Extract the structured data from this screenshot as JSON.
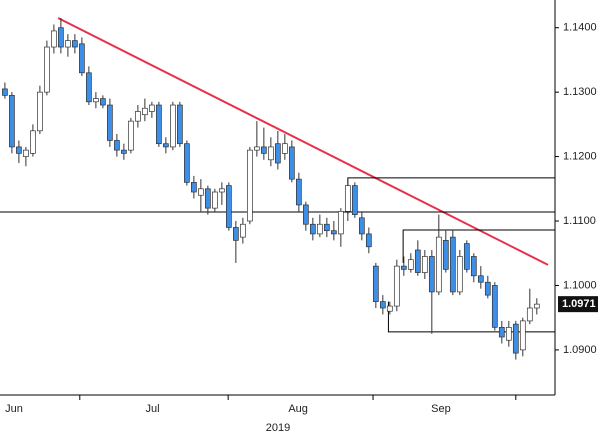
{
  "chart_data": {
    "type": "candlestick",
    "xlabel": "2019",
    "categories": [
      null,
      null,
      null,
      null,
      null,
      null,
      null,
      null,
      null,
      null,
      null,
      null,
      null,
      null,
      null,
      null,
      null,
      null,
      null,
      null,
      null,
      null,
      null,
      null,
      null,
      null,
      null,
      null,
      null,
      null,
      null,
      null,
      null,
      null,
      null,
      null,
      null,
      null,
      null,
      null,
      null,
      null,
      null,
      null,
      null,
      null,
      null,
      null,
      null,
      null,
      null,
      null,
      null,
      null,
      null,
      null,
      null,
      null,
      null,
      null,
      null,
      null,
      null,
      null,
      null,
      null,
      null,
      null,
      null,
      null,
      null,
      null,
      null,
      null,
      null,
      null,
      null
    ],
    "open": [
      1.1305,
      1.1295,
      1.1215,
      1.12,
      1.1205,
      1.124,
      1.13,
      1.137,
      1.14,
      1.137,
      1.138,
      1.1375,
      1.133,
      1.1285,
      1.129,
      1.128,
      1.1225,
      1.121,
      1.121,
      1.1255,
      1.1265,
      1.127,
      1.128,
      1.122,
      1.1215,
      1.128,
      1.122,
      1.116,
      1.114,
      1.115,
      1.112,
      1.1145,
      1.1155,
      1.109,
      1.1075,
      1.11,
      1.121,
      1.1215,
      1.1195,
      1.122,
      1.1205,
      1.1215,
      1.1165,
      1.1125,
      1.1095,
      1.108,
      1.1095,
      1.1085,
      1.108,
      1.1115,
      1.1155,
      1.1105,
      1.108,
      1.103,
      1.0975,
      1.096,
      1.0968,
      1.103,
      1.1025,
      1.1055,
      1.102,
      1.1045,
      1.099,
      1.107,
      1.1075,
      1.099,
      1.1065,
      1.1045,
      1.1015,
      1.1005,
      1.1,
      1.0935,
      1.0915,
      1.094,
      1.09,
      1.0945,
      1.0965
    ],
    "high": [
      1.1315,
      1.13,
      1.1225,
      1.1215,
      1.125,
      1.131,
      1.138,
      1.1405,
      1.1415,
      1.139,
      1.139,
      1.1385,
      1.134,
      1.13,
      1.1295,
      1.129,
      1.1235,
      1.122,
      1.126,
      1.128,
      1.129,
      1.1285,
      1.1285,
      1.123,
      1.1285,
      1.1285,
      1.1225,
      1.117,
      1.1165,
      1.1155,
      1.115,
      1.116,
      1.116,
      1.11,
      1.1105,
      1.1215,
      1.1255,
      1.1245,
      1.123,
      1.124,
      1.1235,
      1.1225,
      1.1175,
      1.113,
      1.1105,
      1.111,
      1.1105,
      1.11,
      1.112,
      1.1167,
      1.116,
      1.1115,
      1.109,
      1.1035,
      1.0985,
      1.0975,
      1.104,
      1.1045,
      1.105,
      1.107,
      1.1055,
      1.1055,
      1.111,
      1.1085,
      1.1085,
      1.1055,
      1.107,
      1.105,
      1.103,
      1.1015,
      1.1005,
      1.0945,
      1.0945,
      1.0945,
      1.095,
      1.0995,
      1.098
    ],
    "low": [
      1.129,
      1.1205,
      1.119,
      1.1185,
      1.12,
      1.1235,
      1.1295,
      1.136,
      1.136,
      1.1355,
      1.136,
      1.1325,
      1.128,
      1.1275,
      1.1275,
      1.1215,
      1.12,
      1.1195,
      1.1205,
      1.1245,
      1.1255,
      1.126,
      1.1215,
      1.1205,
      1.121,
      1.1215,
      1.1155,
      1.1135,
      1.1115,
      1.111,
      1.1115,
      1.1125,
      1.1085,
      1.1035,
      1.1065,
      1.1095,
      1.12,
      1.1195,
      1.1185,
      1.118,
      1.1195,
      1.116,
      1.1115,
      1.1085,
      1.107,
      1.1075,
      1.1075,
      1.107,
      1.106,
      1.11,
      1.1105,
      1.107,
      1.105,
      1.0965,
      1.0955,
      1.0955,
      1.096,
      1.1015,
      1.102,
      1.1015,
      1.101,
      1.0925,
      1.0985,
      1.102,
      1.0985,
      1.0985,
      1.102,
      1.1005,
      1.0995,
      1.098,
      1.093,
      1.091,
      1.0905,
      1.0885,
      1.089,
      1.094,
      1.0955
    ],
    "close": [
      1.1295,
      1.1215,
      1.1205,
      1.121,
      1.124,
      1.13,
      1.137,
      1.1395,
      1.137,
      1.138,
      1.137,
      1.133,
      1.1285,
      1.129,
      1.128,
      1.1225,
      1.121,
      1.1205,
      1.1255,
      1.127,
      1.1275,
      1.128,
      1.122,
      1.1215,
      1.128,
      1.122,
      1.116,
      1.1145,
      1.115,
      1.112,
      1.1145,
      1.115,
      1.109,
      1.107,
      1.1095,
      1.121,
      1.1215,
      1.1205,
      1.1215,
      1.119,
      1.122,
      1.1165,
      1.1125,
      1.1095,
      1.108,
      1.1095,
      1.1085,
      1.108,
      1.1115,
      1.1155,
      1.111,
      1.108,
      1.106,
      1.0975,
      1.0965,
      1.0968,
      1.103,
      1.1025,
      1.104,
      1.102,
      1.1045,
      1.099,
      1.1075,
      1.1025,
      1.099,
      1.1045,
      1.1025,
      1.1015,
      1.1005,
      1.0985,
      1.0935,
      1.092,
      1.0935,
      1.0895,
      1.0945,
      1.0965,
      1.0971
    ],
    "up_color": "#ffffff",
    "down_color": "#3d8ee6",
    "xlim": [
      -0.7,
      78.6
    ],
    "ylim": [
      1.083,
      1.1443
    ],
    "yticks": [
      {
        "value": 1.09,
        "label": "1.0900"
      },
      {
        "value": 1.1,
        "label": "1.1000"
      },
      {
        "value": 1.11,
        "label": "1.1100"
      },
      {
        "value": 1.12,
        "label": "1.1200"
      },
      {
        "value": 1.13,
        "label": "1.1300"
      },
      {
        "value": 1.14,
        "label": "1.1400"
      }
    ],
    "xticks": [
      {
        "value": 1.3,
        "label": "Jun"
      },
      {
        "value": 21.1,
        "label": "Jul"
      },
      {
        "value": 41.9,
        "label": "Aug"
      },
      {
        "value": 62.3,
        "label": "Sep"
      }
    ],
    "minor_xticks": [
      10.7,
      31.9,
      52.6,
      73
    ],
    "lines": [
      {
        "color": "#e8304a",
        "x": [
          7.6,
          77.6
        ],
        "y": [
          1.1415,
          1.1032
        ]
      },
      {
        "color": "#000000",
        "x": [
          -0.7,
          78.6
        ],
        "y": [
          1.1114,
          1.1114
        ]
      },
      {
        "color": "#000000",
        "x": [
          49,
          49,
          78.6
        ],
        "y": [
          1.1111,
          1.1167,
          1.1167
        ]
      },
      {
        "color": "#000000",
        "x": [
          56.9,
          56.9,
          78.6
        ],
        "y": [
          1.1035,
          1.1086,
          1.1086
        ]
      },
      {
        "color": "#000000",
        "x": [
          54.8,
          54.8,
          78.6
        ],
        "y": [
          1.0975,
          1.0928,
          1.0928
        ]
      }
    ]
  }
}
